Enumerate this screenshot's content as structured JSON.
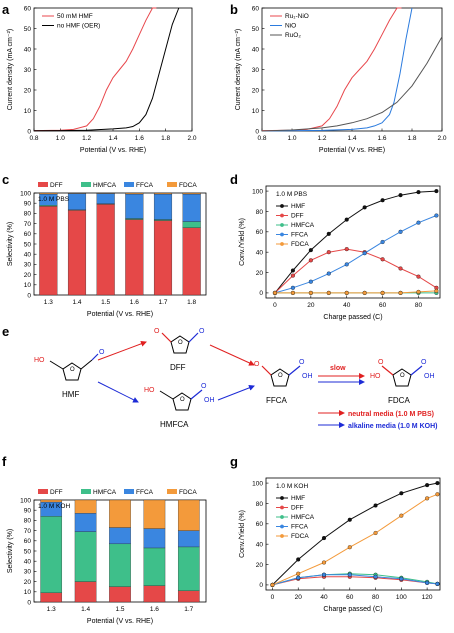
{
  "colors": {
    "red": "#e8474c",
    "black": "#000000",
    "blue": "#2b7bde",
    "gray": "#555555",
    "hmf_black": "#111111",
    "dff": "#e54848",
    "hmfca": "#3ebf8a",
    "ffca": "#3a86e0",
    "fdca": "#f39a3b",
    "alk_blue": "#1d2bd6",
    "neutral_red": "#e02020"
  },
  "panels": {
    "a": "a",
    "b": "b",
    "c": "c",
    "d": "d",
    "e": "e",
    "f": "f",
    "g": "g"
  },
  "chart_data": [
    {
      "id": "a",
      "type": "line",
      "xlabel": "Potential (V vs. RHE)",
      "ylabel": "Current density (mA cm⁻²)",
      "xlim": [
        0.8,
        2.0
      ],
      "ylim": [
        0,
        60
      ],
      "xticks": [
        "0.8",
        "1.0",
        "1.2",
        "1.4",
        "1.6",
        "1.8",
        "2.0"
      ],
      "yticks": [
        "0",
        "10",
        "20",
        "30",
        "40",
        "50",
        "60"
      ],
      "legend": "top-left",
      "series": [
        {
          "name": "50 mM HMF",
          "color": "red",
          "x": [
            0.8,
            1.0,
            1.1,
            1.2,
            1.25,
            1.3,
            1.35,
            1.4,
            1.45,
            1.5,
            1.55,
            1.6,
            1.65,
            1.7,
            1.73
          ],
          "y": [
            0.2,
            0.4,
            0.8,
            2.5,
            6,
            12,
            20,
            26,
            30,
            34,
            40,
            47,
            54,
            60,
            63
          ]
        },
        {
          "name": "no HMF (OER)",
          "color": "black",
          "x": [
            0.8,
            1.0,
            1.2,
            1.4,
            1.5,
            1.55,
            1.6,
            1.65,
            1.7,
            1.75,
            1.8,
            1.85,
            1.9
          ],
          "y": [
            0.1,
            0.2,
            0.4,
            1,
            1.5,
            2.2,
            4,
            8,
            16,
            28,
            40,
            52,
            63
          ]
        }
      ]
    },
    {
      "id": "b",
      "type": "line",
      "xlabel": "Potential (V vs. RHE)",
      "ylabel": "Current density (mA cm⁻²)",
      "xlim": [
        0.8,
        2.0
      ],
      "ylim": [
        0,
        60
      ],
      "xticks": [
        "0.8",
        "1.0",
        "1.2",
        "1.4",
        "1.6",
        "1.8",
        "2.0"
      ],
      "yticks": [
        "0",
        "10",
        "20",
        "30",
        "40",
        "50",
        "60"
      ],
      "legend": "top-left",
      "series": [
        {
          "name": "Ru₁-NiO",
          "color": "red",
          "x": [
            0.8,
            1.0,
            1.1,
            1.2,
            1.25,
            1.3,
            1.35,
            1.4,
            1.45,
            1.5,
            1.55,
            1.6,
            1.65,
            1.7,
            1.73
          ],
          "y": [
            0.2,
            0.4,
            0.8,
            2.5,
            6,
            12,
            20,
            26,
            30,
            34,
            40,
            47,
            54,
            60,
            63
          ]
        },
        {
          "name": "NiO",
          "color": "blue",
          "x": [
            0.8,
            1.2,
            1.4,
            1.5,
            1.55,
            1.6,
            1.65,
            1.68,
            1.72,
            1.76,
            1.8
          ],
          "y": [
            0,
            0.3,
            0.8,
            1.5,
            2.5,
            4,
            8,
            14,
            28,
            45,
            63
          ]
        },
        {
          "name": "RuO₂",
          "color": "gray",
          "x": [
            0.8,
            1.0,
            1.2,
            1.3,
            1.4,
            1.5,
            1.6,
            1.7,
            1.8,
            1.9,
            2.0
          ],
          "y": [
            0,
            0.5,
            1.5,
            2.5,
            4,
            6,
            9,
            14,
            22,
            33,
            46
          ]
        }
      ]
    },
    {
      "id": "c",
      "type": "bar",
      "note": "1.0 M PBS",
      "xlabel": "Potential (V vs. RHE)",
      "ylabel": "Selectivity (%)",
      "ylim": [
        0,
        100
      ],
      "yticks": [
        "0",
        "10",
        "20",
        "30",
        "40",
        "50",
        "60",
        "70",
        "80",
        "90",
        "100"
      ],
      "legend": "top",
      "categories": [
        "1.3",
        "1.4",
        "1.5",
        "1.6",
        "1.7",
        "1.8"
      ],
      "series": [
        {
          "name": "DFF",
          "color": "dff",
          "values": [
            87,
            83,
            89,
            74,
            73,
            66
          ]
        },
        {
          "name": "HMFCA",
          "color": "hmfca",
          "values": [
            1,
            0.5,
            0.5,
            1,
            1,
            6
          ]
        },
        {
          "name": "FFCA",
          "color": "ffca",
          "values": [
            11,
            16,
            10,
            24,
            25,
            27
          ]
        },
        {
          "name": "FDCA",
          "color": "fdca",
          "values": [
            1,
            0.5,
            0.5,
            1,
            1,
            1
          ]
        }
      ]
    },
    {
      "id": "d",
      "type": "line",
      "note": "1.0 M PBS",
      "xlabel": "Charge passed (C)",
      "ylabel": "Conv./Yield (%)",
      "xlim": [
        -5,
        92
      ],
      "ylim": [
        -5,
        105
      ],
      "xticks": [
        "0",
        "20",
        "40",
        "60",
        "80"
      ],
      "yticks": [
        "0",
        "20",
        "40",
        "60",
        "80",
        "100"
      ],
      "legend": "top-left",
      "series": [
        {
          "name": "HMF",
          "color": "hmf_black",
          "x": [
            0,
            10,
            20,
            30,
            40,
            50,
            60,
            70,
            80,
            90
          ],
          "y": [
            0,
            22,
            42,
            58,
            72,
            84,
            91,
            96,
            99,
            100
          ]
        },
        {
          "name": "DFF",
          "color": "dff",
          "x": [
            0,
            10,
            20,
            30,
            40,
            50,
            60,
            70,
            80,
            90
          ],
          "y": [
            0,
            17,
            32,
            40,
            43,
            40,
            33,
            24,
            16,
            5
          ]
        },
        {
          "name": "HMFCA",
          "color": "hmfca",
          "x": [
            0,
            10,
            20,
            30,
            40,
            50,
            60,
            70,
            80,
            90
          ],
          "y": [
            0,
            0,
            0,
            0,
            0,
            0,
            0,
            0,
            0,
            0
          ]
        },
        {
          "name": "FFCA",
          "color": "ffca",
          "x": [
            0,
            10,
            20,
            30,
            40,
            50,
            60,
            70,
            80,
            90
          ],
          "y": [
            0,
            5,
            11,
            19,
            28,
            39,
            50,
            60,
            69,
            76
          ]
        },
        {
          "name": "FDCA",
          "color": "fdca",
          "x": [
            0,
            10,
            20,
            30,
            40,
            50,
            60,
            70,
            80,
            90
          ],
          "y": [
            0,
            0,
            0,
            0,
            0,
            0,
            0,
            0,
            1,
            2
          ]
        }
      ]
    },
    {
      "id": "f",
      "type": "bar",
      "note": "1.0 M KOH",
      "xlabel": "Potential (V vs. RHE)",
      "ylabel": "Selectivity (%)",
      "ylim": [
        0,
        100
      ],
      "yticks": [
        "0",
        "10",
        "20",
        "30",
        "40",
        "50",
        "60",
        "70",
        "80",
        "90",
        "100"
      ],
      "legend": "top",
      "categories": [
        "1.3",
        "1.4",
        "1.5",
        "1.6",
        "1.7"
      ],
      "series": [
        {
          "name": "DFF",
          "color": "dff",
          "values": [
            9,
            20,
            15,
            16,
            11
          ]
        },
        {
          "name": "HMFCA",
          "color": "hmfca",
          "values": [
            75,
            49,
            42,
            37,
            43
          ]
        },
        {
          "name": "FFCA",
          "color": "ffca",
          "values": [
            14,
            18,
            16,
            19,
            16
          ]
        },
        {
          "name": "FDCA",
          "color": "fdca",
          "values": [
            2,
            13,
            27,
            28,
            30
          ]
        }
      ]
    },
    {
      "id": "g",
      "type": "line",
      "note": "1.0 M KOH",
      "xlabel": "Charge passed (C)",
      "ylabel": "Conv./Yield (%)",
      "xlim": [
        -5,
        130
      ],
      "ylim": [
        -5,
        105
      ],
      "xticks": [
        "0",
        "20",
        "40",
        "60",
        "80",
        "100",
        "120"
      ],
      "yticks": [
        "0",
        "20",
        "40",
        "60",
        "80",
        "100"
      ],
      "legend": "top-left",
      "series": [
        {
          "name": "HMF",
          "color": "hmf_black",
          "x": [
            0,
            20,
            40,
            60,
            80,
            100,
            120,
            128
          ],
          "y": [
            0,
            25,
            46,
            64,
            78,
            90,
            98,
            100
          ]
        },
        {
          "name": "DFF",
          "color": "dff",
          "x": [
            0,
            20,
            40,
            60,
            80,
            100,
            120,
            128
          ],
          "y": [
            0,
            6,
            8,
            8,
            7,
            5,
            2,
            1
          ]
        },
        {
          "name": "HMFCA",
          "color": "hmfca",
          "x": [
            0,
            20,
            40,
            60,
            80,
            100,
            120,
            128
          ],
          "y": [
            0,
            7,
            10,
            11,
            10,
            7,
            3,
            1
          ]
        },
        {
          "name": "FFCA",
          "color": "ffca",
          "x": [
            0,
            20,
            40,
            60,
            80,
            100,
            120,
            128
          ],
          "y": [
            0,
            7,
            10,
            10,
            8,
            6,
            2,
            1
          ]
        },
        {
          "name": "FDCA",
          "color": "fdca",
          "x": [
            0,
            20,
            40,
            60,
            80,
            100,
            120,
            128
          ],
          "y": [
            0,
            11,
            22,
            37,
            51,
            68,
            85,
            89
          ]
        }
      ]
    }
  ],
  "scheme": {
    "hmf": "HMF",
    "dff": "DFF",
    "hmfca": "HMFCA",
    "ffca": "FFCA",
    "fdca": "FDCA",
    "slow": "slow",
    "neutral": "neutral media (1.0 M PBS)",
    "alkaline": "alkaline media (1.0 M KOH)"
  }
}
